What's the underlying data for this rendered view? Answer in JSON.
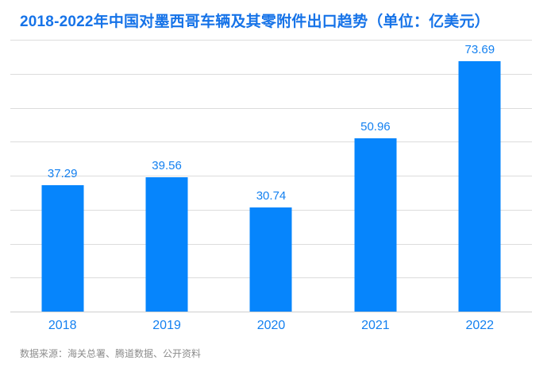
{
  "title": "2018-2022年中国对墨西哥车辆及其零附件出口趋势（单位：亿美元）",
  "source_note": "数据来源：海关总署、腾道数据、公开资料",
  "colors": {
    "bar": "#0685FC",
    "title": "#1673E8",
    "data_label": "#1380F0",
    "axis_label": "#1380F0",
    "gridline": "#DCDCDC",
    "axis_line": "#CFCFCF",
    "source_text": "#8C8C8C",
    "background": "#FFFFFF"
  },
  "chart_data": {
    "type": "bar",
    "title": "2018-2022年中国对墨西哥车辆及其零附件出口趋势（单位：亿美元）",
    "categories": [
      "2018",
      "2019",
      "2020",
      "2021",
      "2022"
    ],
    "values": [
      37.29,
      39.56,
      30.74,
      50.96,
      73.69
    ],
    "data_labels": [
      "37.29",
      "39.56",
      "30.74",
      "50.96",
      "73.69"
    ],
    "xlabel": "",
    "ylabel": "",
    "ylim": [
      0,
      80
    ],
    "grid_step": 10,
    "grid": true,
    "y_tick_labels_visible": false,
    "legend": false,
    "annotation": "数据来源：海关总署、腾道数据、公开资料"
  }
}
